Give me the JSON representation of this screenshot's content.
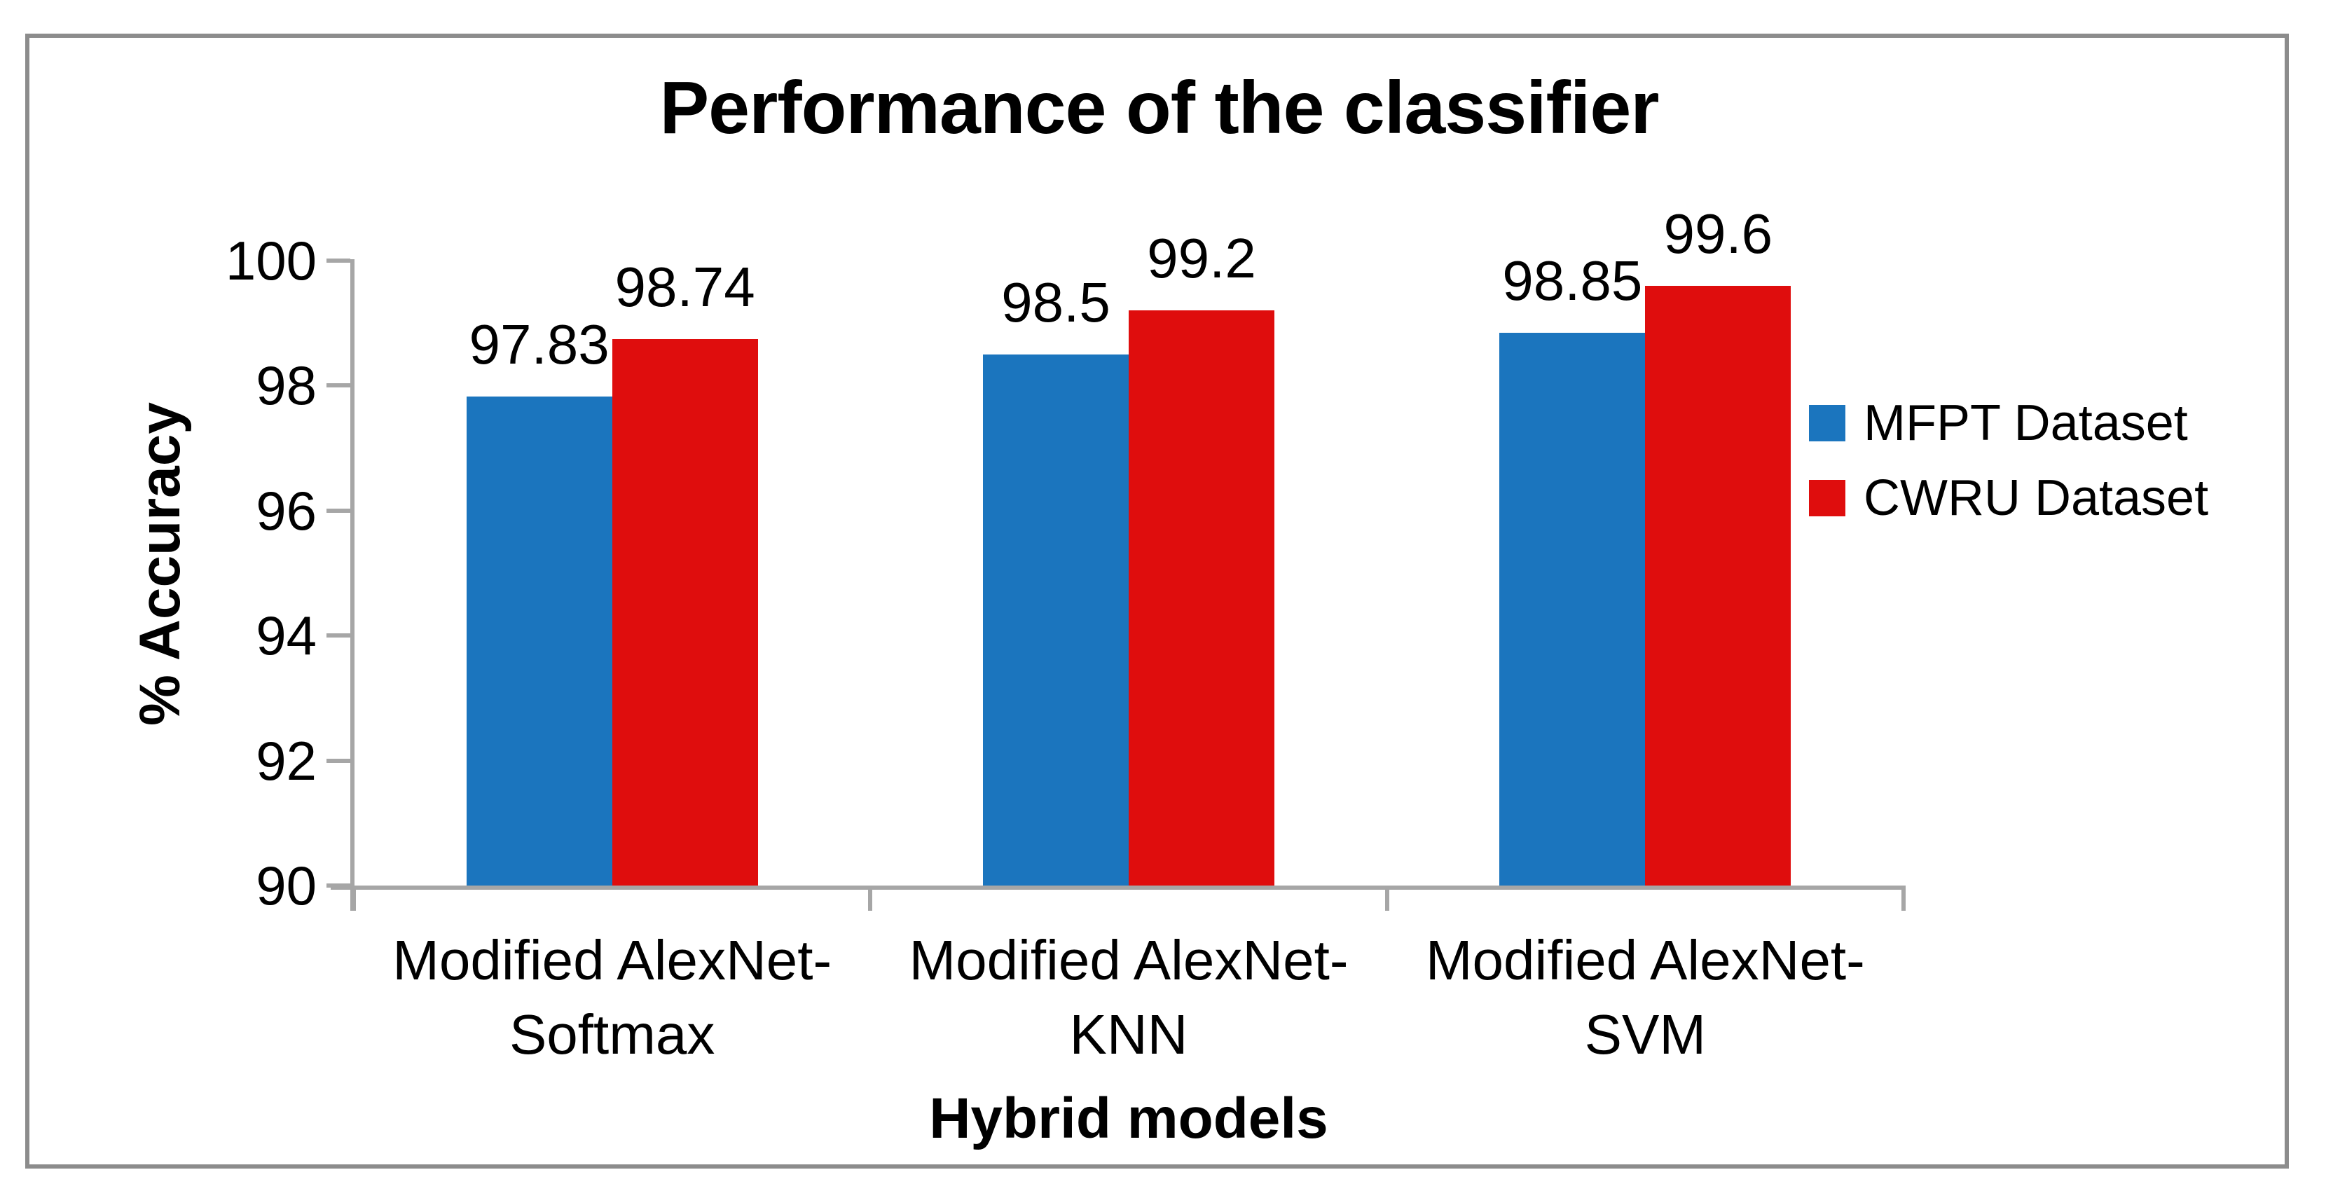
{
  "chart_data": {
    "type": "bar",
    "title": "Performance of the classifier",
    "xlabel": "Hybrid models",
    "ylabel": "% Accuracy",
    "ylim": [
      90,
      100
    ],
    "yticks": [
      90,
      92,
      94,
      96,
      98,
      100
    ],
    "grid": false,
    "legend_position": "right",
    "categories": [
      "Modified AlexNet-Softmax",
      "Modified AlexNet-KNN",
      "Modified AlexNet-SVM"
    ],
    "category_lines": [
      [
        "Modified AlexNet-",
        "Softmax"
      ],
      [
        "Modified AlexNet-",
        "KNN"
      ],
      [
        "Modified AlexNet-",
        "SVM"
      ]
    ],
    "series": [
      {
        "name": "MFPT Dataset",
        "color": "#1B75BE",
        "values": [
          97.83,
          98.5,
          98.85
        ]
      },
      {
        "name": "CWRU Dataset",
        "color": "#DF0D0D",
        "values": [
          98.74,
          99.2,
          99.6
        ]
      }
    ],
    "colors": {
      "axis": "#A6A6A6",
      "figure_border": "#8C8C8C",
      "text": "#000000"
    }
  }
}
